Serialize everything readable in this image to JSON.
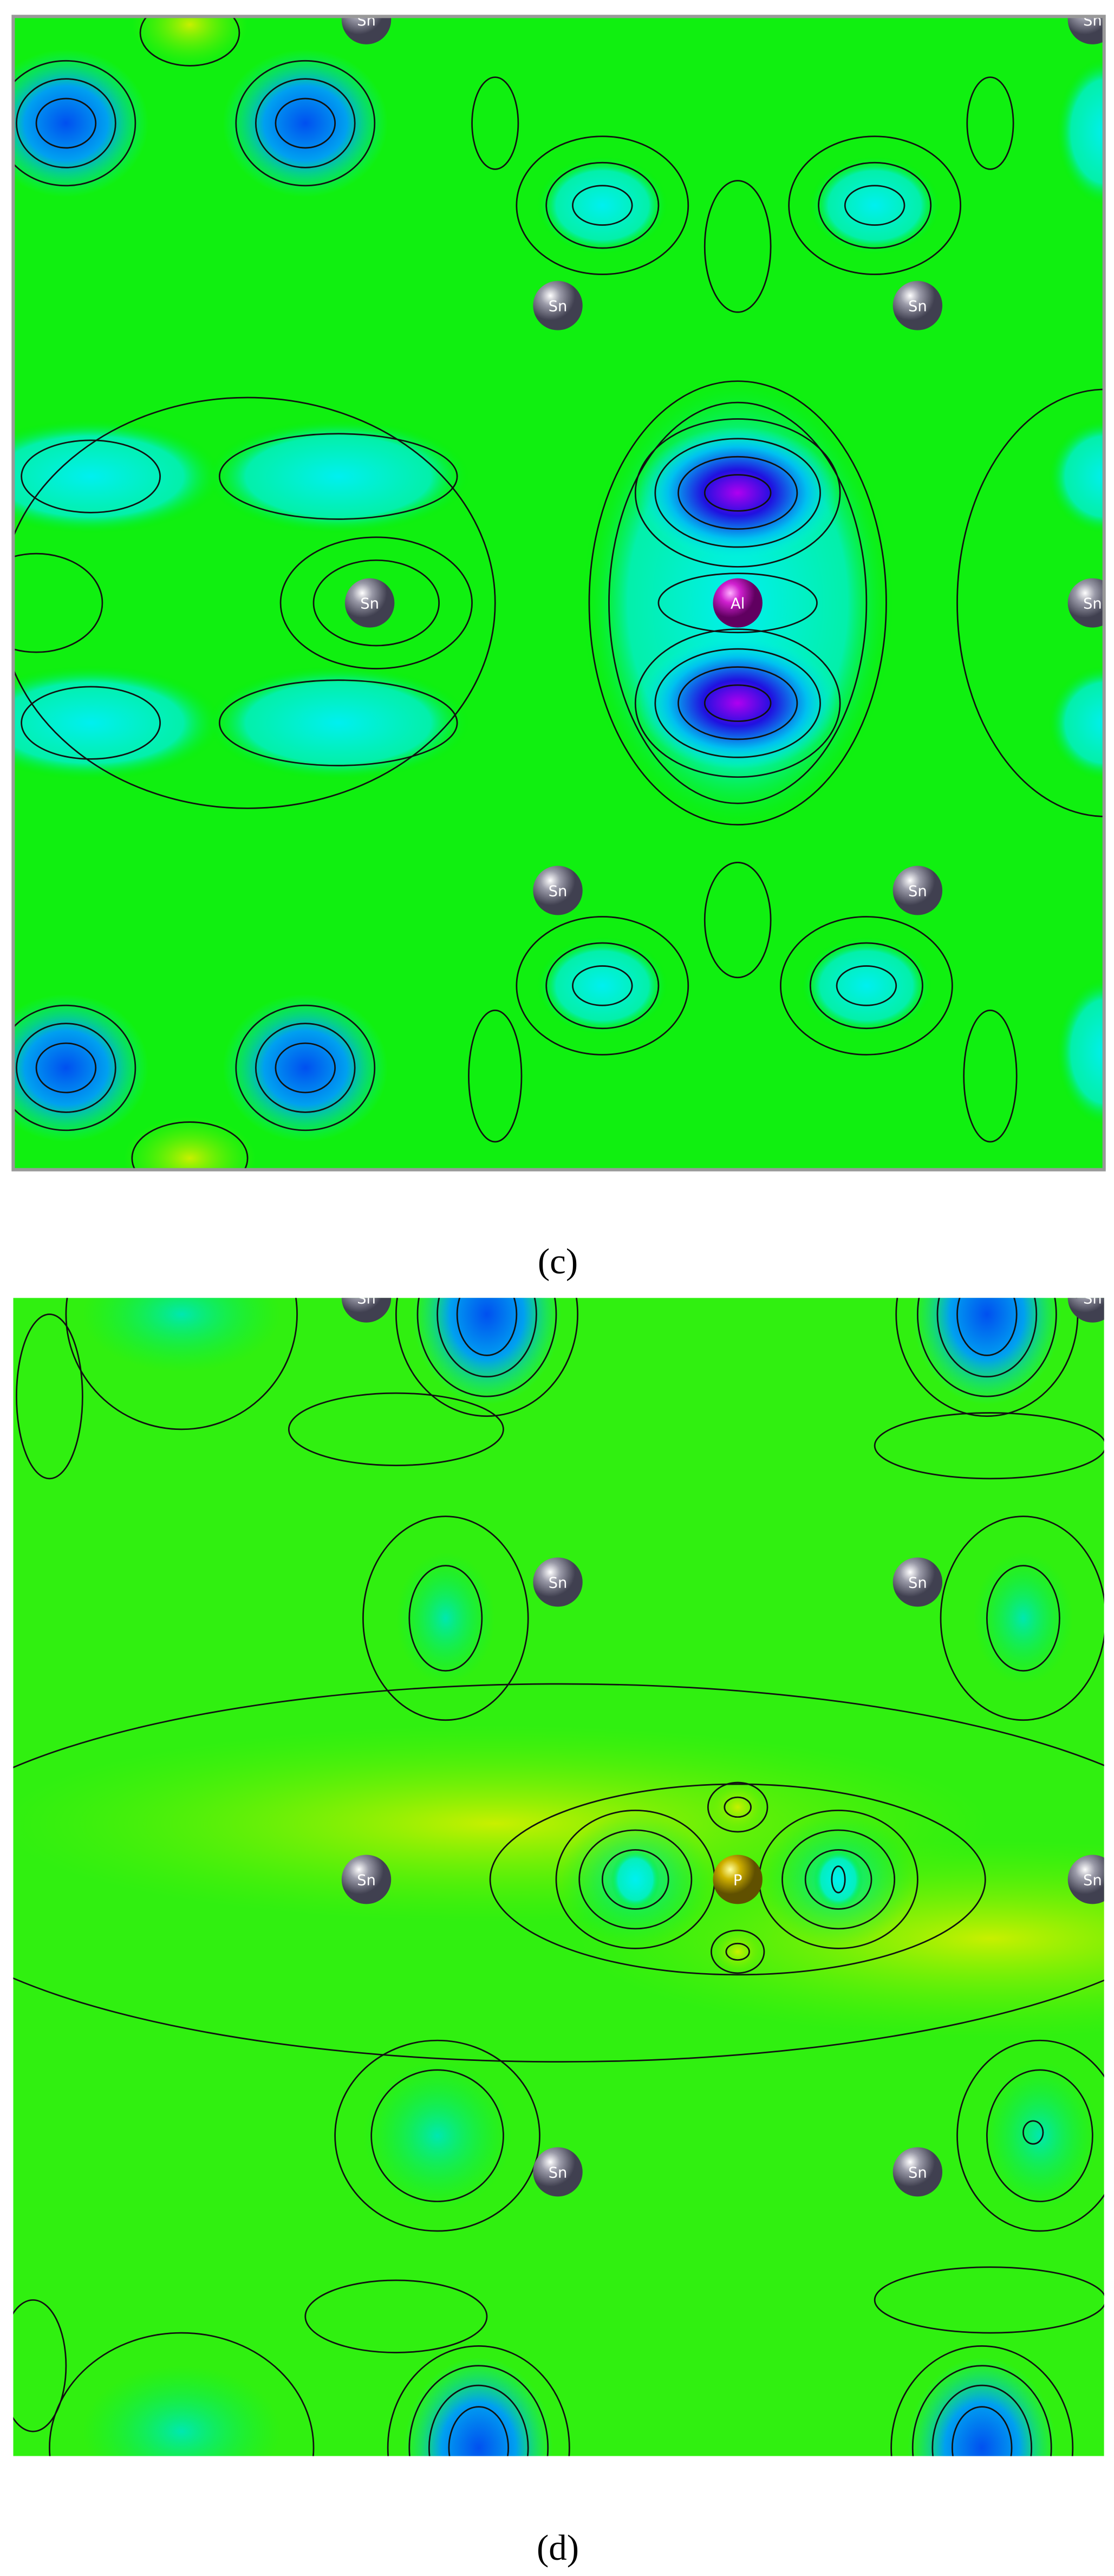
{
  "panels": [
    {
      "caption": "(c)",
      "atoms": [
        {
          "label": "Sn"
        },
        {
          "label": "Sn"
        },
        {
          "label": "Sn"
        },
        {
          "label": "Sn"
        },
        {
          "label": "Sn"
        },
        {
          "label": "Sn"
        },
        {
          "label": "Sn"
        },
        {
          "label": "Sn"
        },
        {
          "label": "Al"
        }
      ]
    },
    {
      "caption": "(d)",
      "atoms": [
        {
          "label": "Sn"
        },
        {
          "label": "Sn"
        },
        {
          "label": "Sn"
        },
        {
          "label": "Sn"
        },
        {
          "label": "Sn"
        },
        {
          "label": "Sn"
        },
        {
          "label": "Sn"
        },
        {
          "label": "Sn"
        },
        {
          "label": "P"
        }
      ]
    }
  ]
}
